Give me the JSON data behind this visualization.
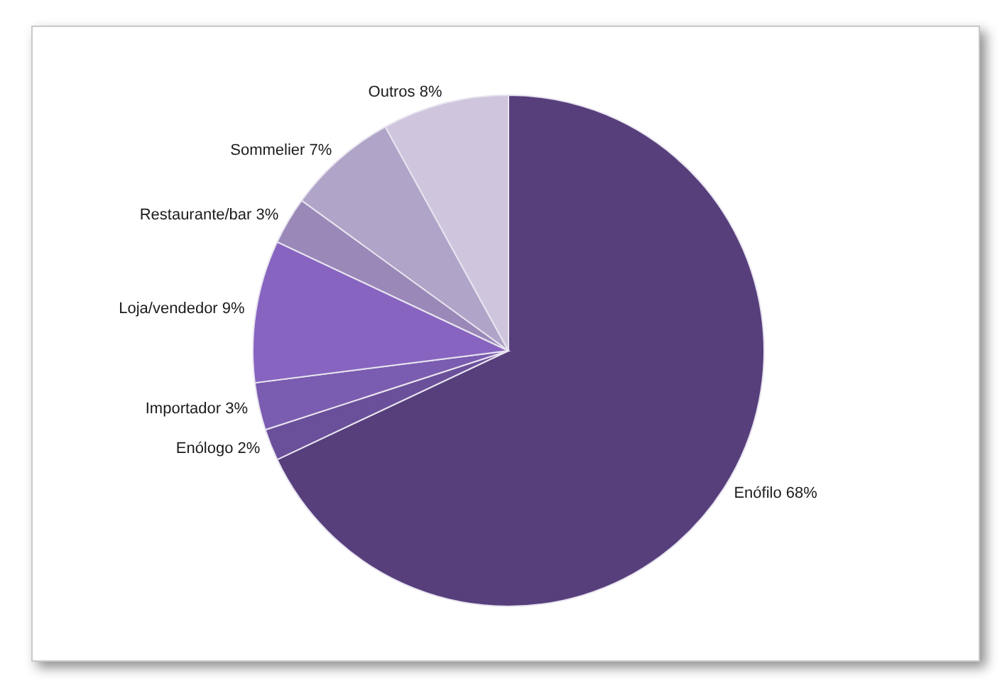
{
  "chart_data": {
    "type": "pie",
    "categories": [
      "Enófilo",
      "Enólogo",
      "Importador",
      "Loja/vendedor",
      "Restaurante/bar",
      "Sommelier",
      "Outros"
    ],
    "values": [
      68,
      2,
      3,
      9,
      3,
      7,
      8
    ],
    "value_labels": [
      "68%",
      "2%",
      "3%",
      "9%",
      "3%",
      "7%",
      "8%"
    ],
    "colors": [
      "#573f7c",
      "#6a4f9a",
      "#7a5cb0",
      "#8764c0",
      "#9a88b8",
      "#b0a4c8",
      "#cfc6de"
    ]
  }
}
